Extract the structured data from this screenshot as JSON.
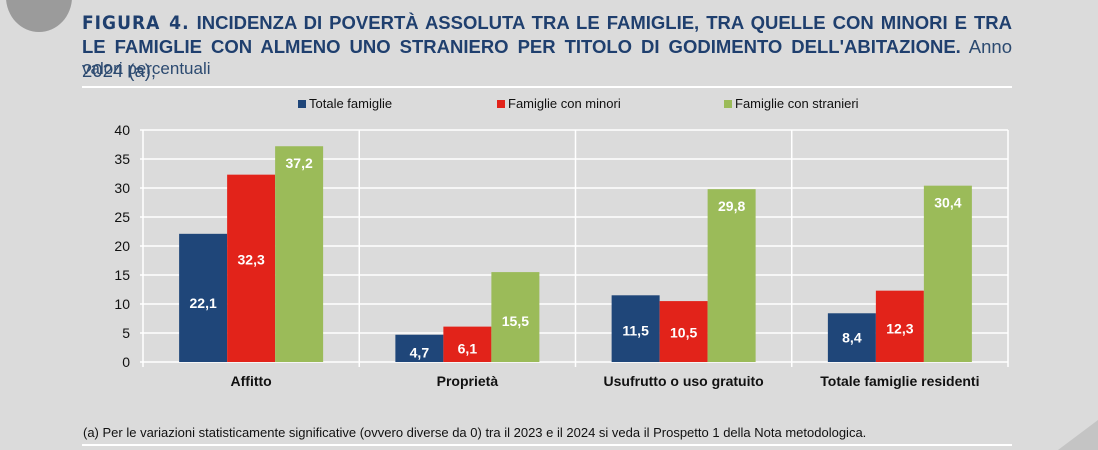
{
  "figure": {
    "label": "FIGURA 4.",
    "title_bold": "INCIDENZA DI POVERTÀ ASSOLUTA TRA LE FAMIGLIE, TRA QUELLE CON MINORI E TRA LE FAMIGLIE CON ALMENO UNO STRANIERO PER TITOLO DI GODIMENTO DELL'ABITAZIONE.",
    "title_rest": "Anno 2024 (a),",
    "subtitle": "valori percentuali",
    "footnote": "(a) Per le variazioni statisticamente significative (ovvero diverse da 0) tra il 2023 e il 2024 si veda il Prospetto 1 della Nota metodologica."
  },
  "colors": {
    "title": "#1f3f6e",
    "series": [
      "#1f4679",
      "#e2231a",
      "#9bbb59"
    ]
  },
  "chart_data": {
    "type": "bar",
    "title": "Incidenza di povertà assoluta per titolo di godimento dell'abitazione. Anno 2024",
    "xlabel": "",
    "ylabel": "",
    "ylim": [
      0,
      40
    ],
    "yticks": [
      0,
      5,
      10,
      15,
      20,
      25,
      30,
      35,
      40
    ],
    "grid": true,
    "legend_position": "top",
    "categories": [
      "Affitto",
      "Proprietà",
      "Usufrutto o uso gratuito",
      "Totale famiglie residenti"
    ],
    "series": [
      {
        "name": "Totale famiglie",
        "values": [
          22.1,
          4.7,
          11.5,
          8.4
        ],
        "labels": [
          "22,1",
          "4,7",
          "11,5",
          "8,4"
        ]
      },
      {
        "name": "Famiglie con minori",
        "values": [
          32.3,
          6.1,
          10.5,
          12.3
        ],
        "labels": [
          "32,3",
          "6,1",
          "10,5",
          "12,3"
        ]
      },
      {
        "name": "Famiglie con stranieri",
        "values": [
          37.2,
          15.5,
          29.8,
          30.4
        ],
        "labels": [
          "37,2",
          "15,5",
          "29,8",
          "30,4"
        ]
      }
    ]
  }
}
